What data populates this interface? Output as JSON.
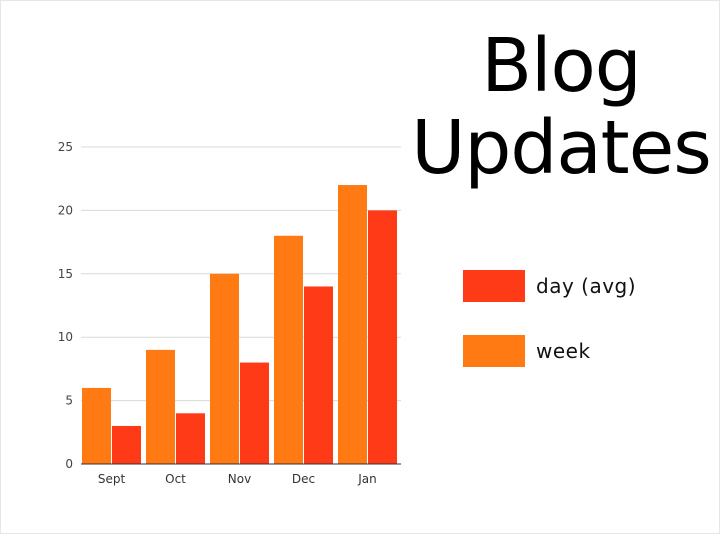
{
  "title_line1": "Blog",
  "title_line2": "Updates",
  "legend": [
    {
      "label": "day (avg)",
      "color": "#ff3a17"
    },
    {
      "label": "week",
      "color": "#ff7a12"
    }
  ],
  "chart_data": {
    "type": "bar",
    "categories": [
      "Sept",
      "Oct",
      "Nov",
      "Dec",
      "Jan"
    ],
    "series": [
      {
        "name": "week",
        "values": [
          6,
          9,
          15,
          18,
          22
        ],
        "color": "#ff7a12"
      },
      {
        "name": "day (avg)",
        "values": [
          3,
          4,
          8,
          14,
          20
        ],
        "color": "#ff3a17"
      }
    ],
    "yticks": [
      "0",
      "5",
      "10",
      "15",
      "20",
      "25"
    ],
    "ylim": [
      0,
      25
    ],
    "grid": true,
    "legend_position": "right"
  }
}
